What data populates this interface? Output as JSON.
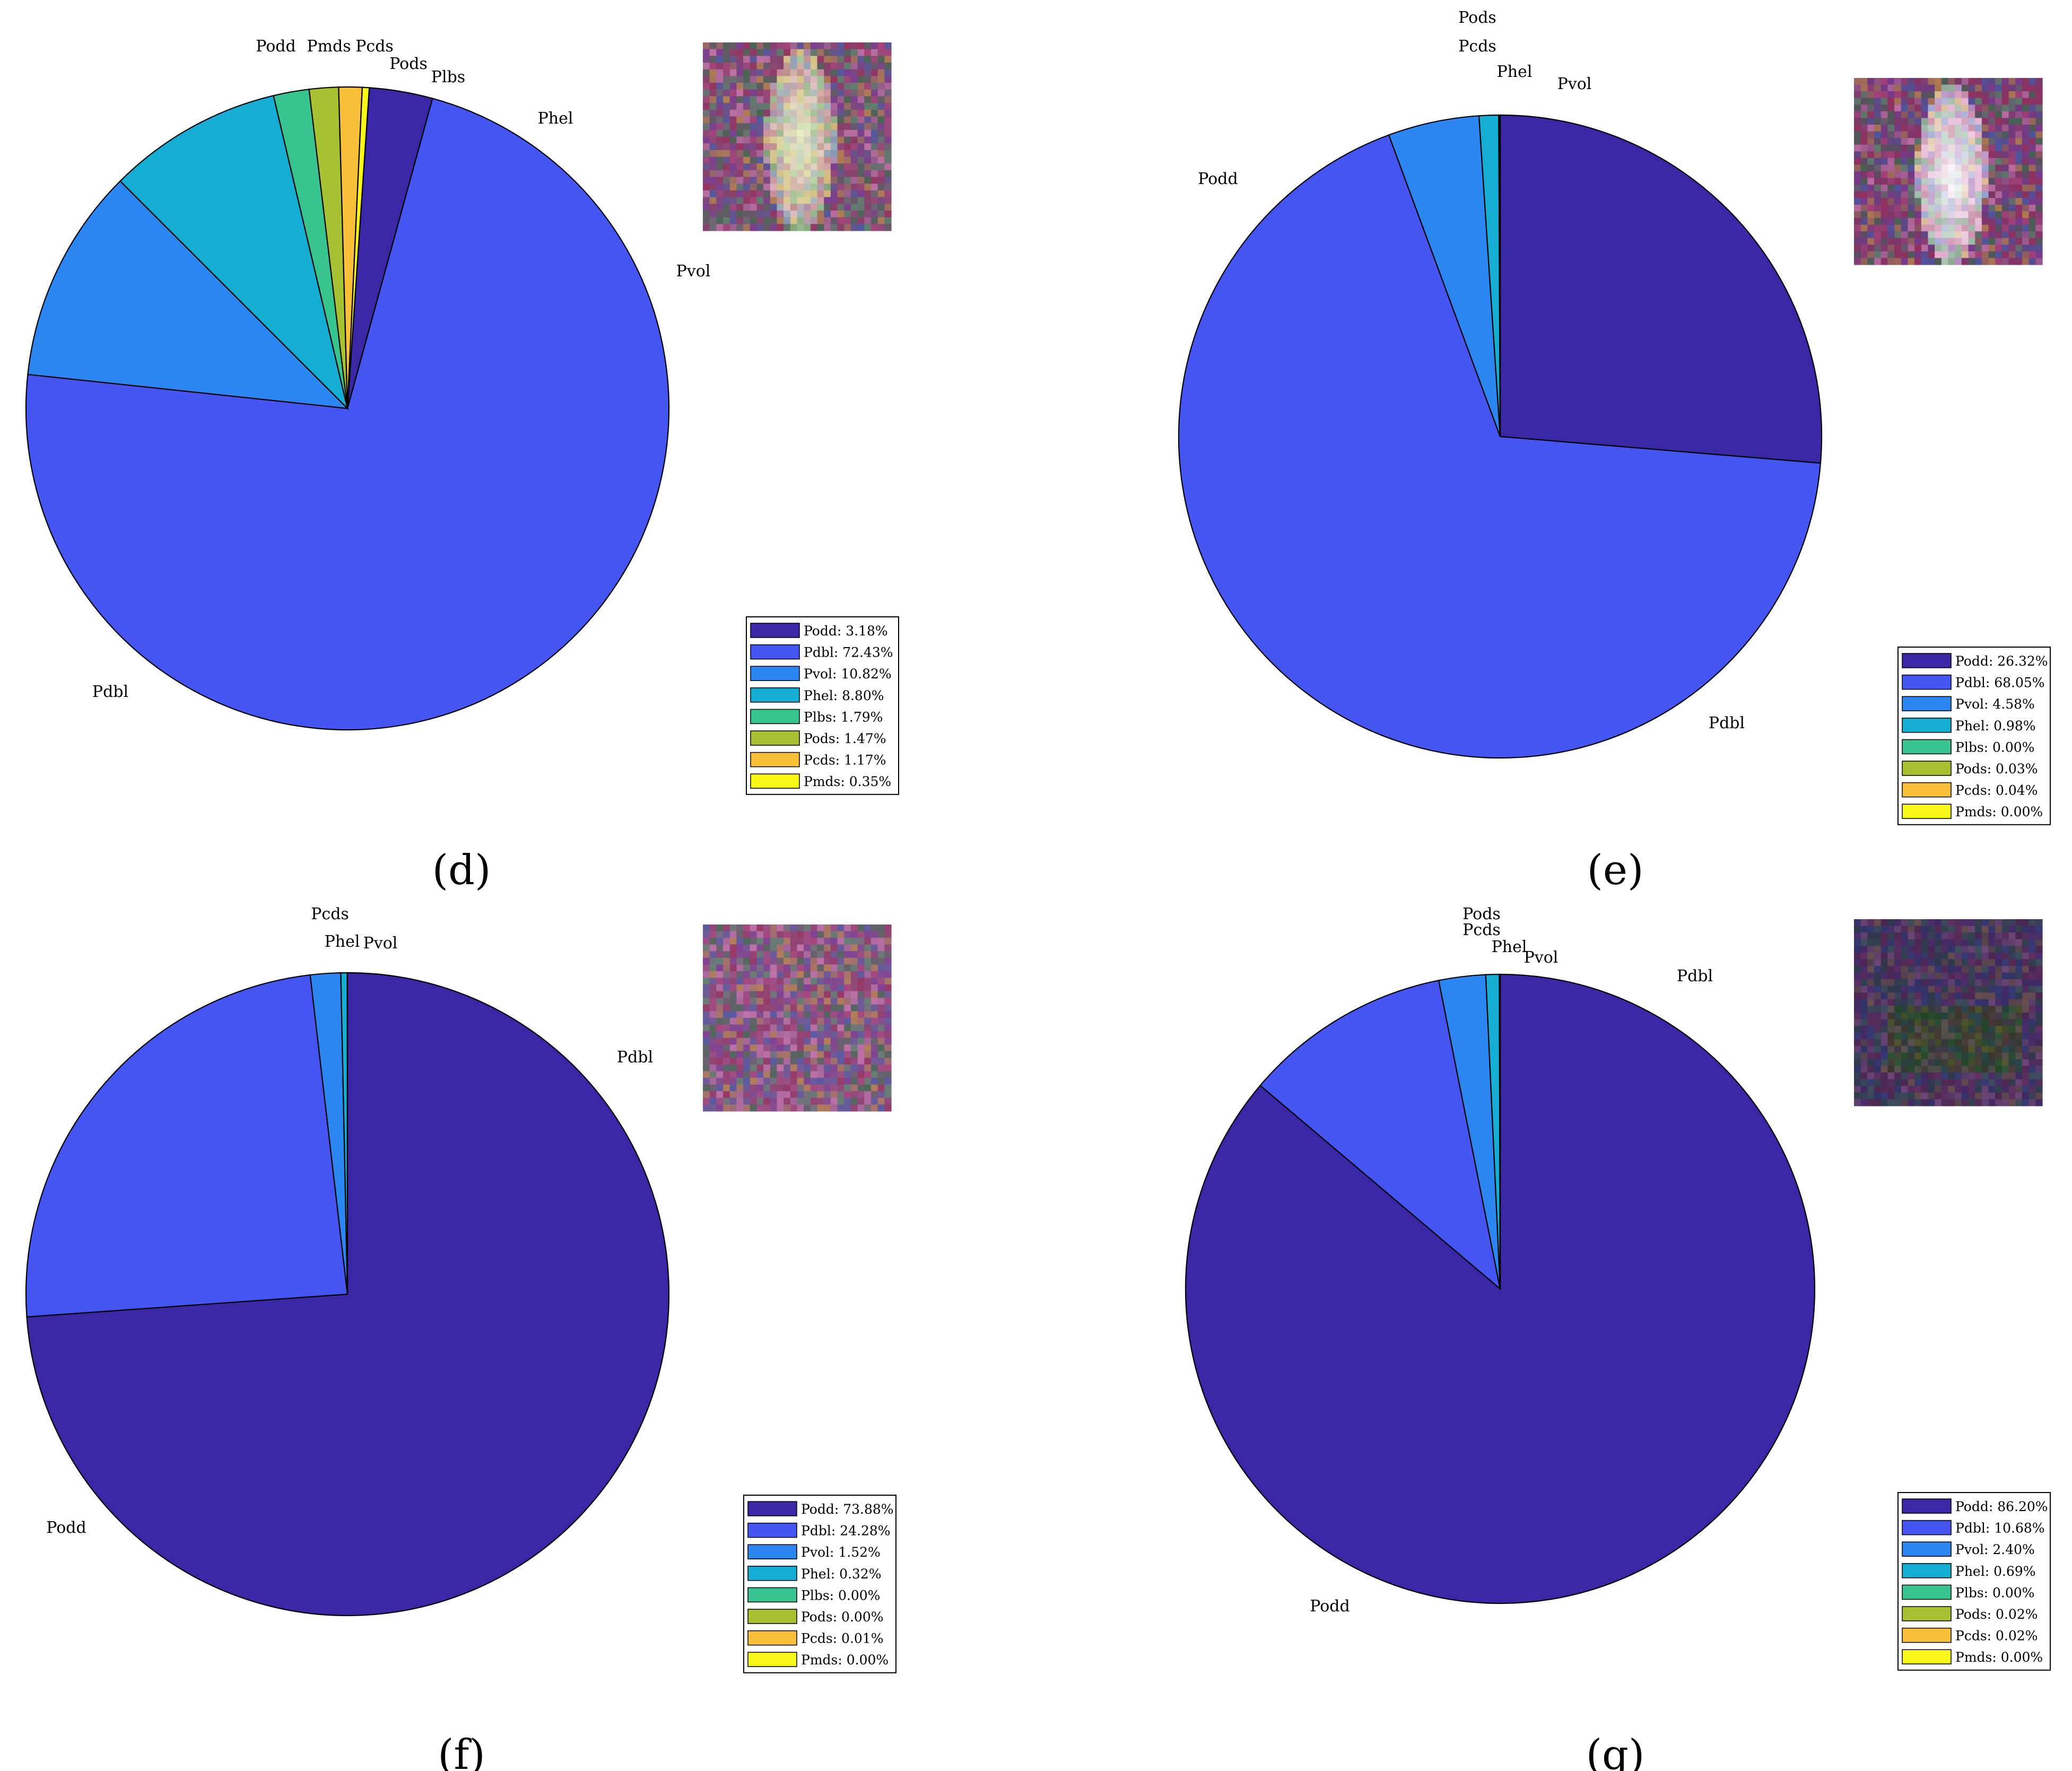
{
  "colors": {
    "Podd": "#3A27A5",
    "Pdbl": "#4555F2",
    "Pvol": "#2C86F2",
    "Phel": "#15ADD3",
    "Plbs": "#37C48F",
    "Pods": "#A6C232",
    "Pcds": "#F9BF39",
    "Pmds": "#F9F71A"
  },
  "chart_data": [
    {
      "type": "pie",
      "panel_label": "(d)",
      "slices": [
        {
          "name": "Podd",
          "value": 3.18,
          "legend": "Podd: 3.18%"
        },
        {
          "name": "Pdbl",
          "value": 72.43,
          "legend": "Pdbl: 72.43%"
        },
        {
          "name": "Pvol",
          "value": 10.82,
          "legend": "Pvol: 10.82%"
        },
        {
          "name": "Phel",
          "value": 8.8,
          "legend": "Phel: 8.80%"
        },
        {
          "name": "Plbs",
          "value": 1.79,
          "legend": "Plbs: 1.79%"
        },
        {
          "name": "Pods",
          "value": 1.47,
          "legend": "Pods: 1.47%"
        },
        {
          "name": "Pcds",
          "value": 1.17,
          "legend": "Pcds: 1.17%"
        },
        {
          "name": "Pmds",
          "value": 0.35,
          "legend": "Pmds: 0.35%"
        }
      ],
      "thumbnail": {
        "base": "#7a4f78",
        "accent": "#e9f7c6",
        "style": "bright-center"
      }
    },
    {
      "type": "pie",
      "panel_label": "(e)",
      "slices": [
        {
          "name": "Podd",
          "value": 26.32,
          "legend": "Podd: 26.32%"
        },
        {
          "name": "Pdbl",
          "value": 68.05,
          "legend": "Pdbl: 68.05%"
        },
        {
          "name": "Pvol",
          "value": 4.58,
          "legend": "Pvol: 4.58%"
        },
        {
          "name": "Phel",
          "value": 0.98,
          "legend": "Phel: 0.98%"
        },
        {
          "name": "Plbs",
          "value": 0.0,
          "legend": "Plbs: 0.00%"
        },
        {
          "name": "Pods",
          "value": 0.03,
          "legend": "Pods: 0.03%"
        },
        {
          "name": "Pcds",
          "value": 0.04,
          "legend": "Pcds: 0.04%"
        },
        {
          "name": "Pmds",
          "value": 0.0,
          "legend": "Pmds: 0.00%"
        }
      ],
      "thumbnail": {
        "base": "#6b3a6e",
        "accent": "#ffffff",
        "style": "bright-center"
      }
    },
    {
      "type": "pie",
      "panel_label": "(f)",
      "slices": [
        {
          "name": "Podd",
          "value": 73.88,
          "legend": "Podd: 73.88%"
        },
        {
          "name": "Pdbl",
          "value": 24.28,
          "legend": "Pdbl: 24.28%"
        },
        {
          "name": "Pvol",
          "value": 1.52,
          "legend": "Pvol: 1.52%"
        },
        {
          "name": "Phel",
          "value": 0.32,
          "legend": "Phel: 0.32%"
        },
        {
          "name": "Plbs",
          "value": 0.0,
          "legend": "Plbs: 0.00%"
        },
        {
          "name": "Pods",
          "value": 0.0,
          "legend": "Pods: 0.00%"
        },
        {
          "name": "Pcds",
          "value": 0.01,
          "legend": "Pcds: 0.01%"
        },
        {
          "name": "Pmds",
          "value": 0.0,
          "legend": "Pmds: 0.00%"
        }
      ],
      "thumbnail": {
        "base": "#8a5a8c",
        "accent": "#b98bb8",
        "style": "noise"
      }
    },
    {
      "type": "pie",
      "panel_label": "(g)",
      "slices": [
        {
          "name": "Podd",
          "value": 86.2,
          "legend": "Podd: 86.20%"
        },
        {
          "name": "Pdbl",
          "value": 10.68,
          "legend": "Pdbl: 10.68%"
        },
        {
          "name": "Pvol",
          "value": 2.4,
          "legend": "Pvol: 2.40%"
        },
        {
          "name": "Phel",
          "value": 0.69,
          "legend": "Phel: 0.69%"
        },
        {
          "name": "Plbs",
          "value": 0.0,
          "legend": "Plbs: 0.00%"
        },
        {
          "name": "Pods",
          "value": 0.02,
          "legend": "Pods: 0.02%"
        },
        {
          "name": "Pcds",
          "value": 0.02,
          "legend": "Pcds: 0.02%"
        },
        {
          "name": "Pmds",
          "value": 0.0,
          "legend": "Pmds: 0.00%"
        }
      ],
      "thumbnail": {
        "base": "#2a2450",
        "accent": "#1d3a1f",
        "style": "dark"
      }
    }
  ]
}
